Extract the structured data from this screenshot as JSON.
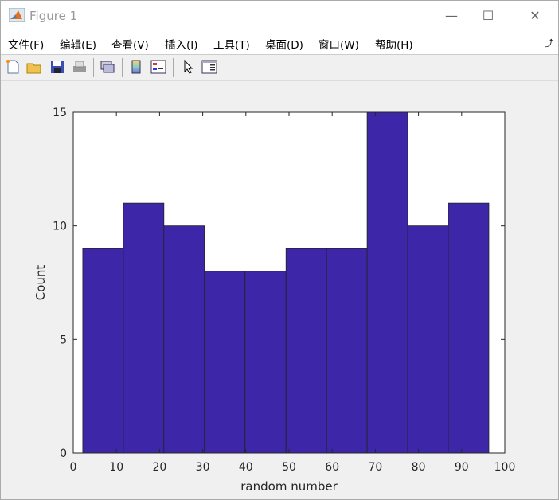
{
  "window": {
    "title": "Figure 1",
    "controls": [
      "minimize",
      "maximize",
      "close"
    ]
  },
  "menu": [
    "文件(F)",
    "编辑(E)",
    "查看(V)",
    "插入(I)",
    "工具(T)",
    "桌面(D)",
    "窗口(W)",
    "帮助(H)"
  ],
  "toolbar": [
    "new-figure-icon",
    "open-icon",
    "save-icon",
    "print-icon",
    "link-plot-icon",
    "colorbar-icon",
    "legend-icon",
    "pointer-icon",
    "property-inspector-icon"
  ],
  "chart_data": {
    "type": "histogram",
    "bin_edges": [
      2.2,
      11.6,
      21.0,
      30.4,
      39.8,
      49.3,
      58.7,
      68.1,
      77.5,
      86.9,
      96.3
    ],
    "values": [
      9,
      11,
      10,
      8,
      8,
      9,
      9,
      15,
      10,
      11
    ],
    "xlabel": "random number",
    "ylabel": "Count",
    "xlim": [
      0,
      100
    ],
    "ylim": [
      0,
      15
    ],
    "xticks": [
      0,
      10,
      20,
      30,
      40,
      50,
      60,
      70,
      80,
      90,
      100
    ],
    "yticks": [
      0,
      5,
      10,
      15
    ],
    "bar_color": "#3e26a8",
    "edge_color": "#222222",
    "grid": false
  }
}
